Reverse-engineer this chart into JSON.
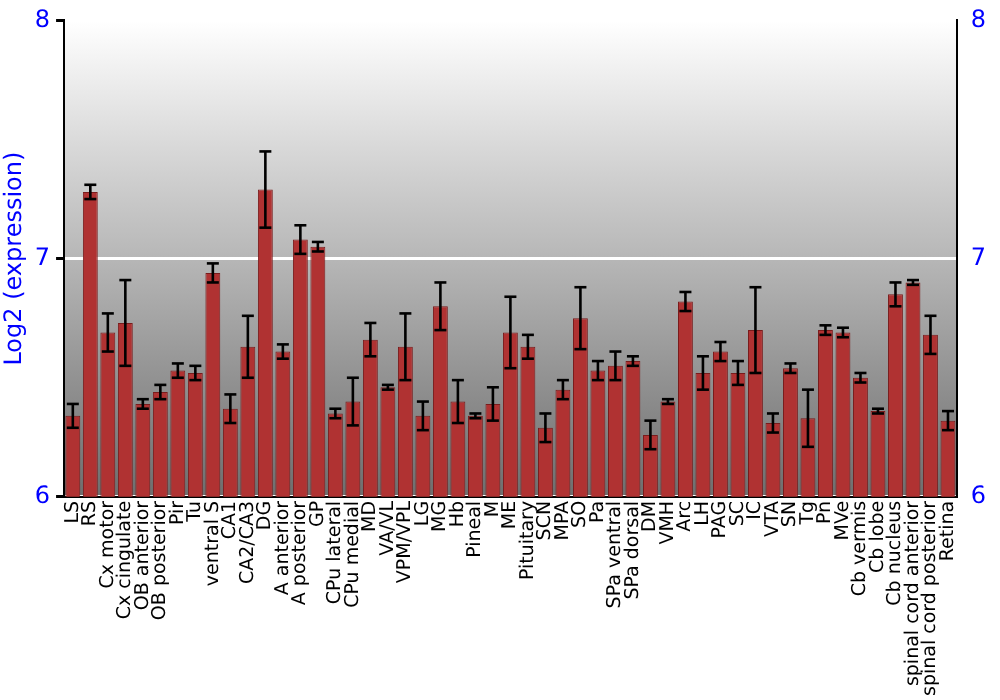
{
  "chart_data": {
    "type": "bar",
    "ylabel": "Log2 (expression)",
    "categories": [
      "LS",
      "RS",
      "Cx motor",
      "Cx cingulate",
      "OB anterior",
      "OB posterior",
      "Pir",
      "Tu",
      "ventral S",
      "CA1",
      "CA2/CA3",
      "DG",
      "A anterior",
      "A posterior",
      "GP",
      "CPu lateral",
      "CPu medial",
      "MD",
      "VA/VL",
      "VPM/VPL",
      "LG",
      "MG",
      "Hb",
      "Pineal",
      "M",
      "ME",
      "Pituitary",
      "SCN",
      "MPA",
      "SO",
      "Pa",
      "SPa ventral",
      "SPa dorsal",
      "DM",
      "VMH",
      "Arc",
      "LH",
      "PAG",
      "SC",
      "IC",
      "VTA",
      "SN",
      "Tg",
      "Pn",
      "MVe",
      "Cb vermis",
      "Cb lobe",
      "Cb nucleus",
      "spinal cord anterior",
      "spinal cord posterior",
      "Retina"
    ],
    "values": [
      6.34,
      7.28,
      6.69,
      6.73,
      6.39,
      6.44,
      6.53,
      6.52,
      6.94,
      6.37,
      6.63,
      7.29,
      6.61,
      7.08,
      7.05,
      6.35,
      6.4,
      6.66,
      6.46,
      6.63,
      6.34,
      6.8,
      6.4,
      6.34,
      6.39,
      6.69,
      6.63,
      6.29,
      6.45,
      6.75,
      6.53,
      6.55,
      6.57,
      6.26,
      6.4,
      6.82,
      6.52,
      6.61,
      6.52,
      6.7,
      6.31,
      6.54,
      6.33,
      6.7,
      6.69,
      6.5,
      6.36,
      6.85,
      6.9,
      6.68,
      6.32
    ],
    "errors": [
      0.05,
      0.03,
      0.08,
      0.18,
      0.02,
      0.03,
      0.03,
      0.03,
      0.04,
      0.06,
      0.13,
      0.16,
      0.03,
      0.06,
      0.02,
      0.02,
      0.1,
      0.07,
      0.01,
      0.14,
      0.06,
      0.1,
      0.09,
      0.01,
      0.07,
      0.15,
      0.05,
      0.06,
      0.04,
      0.13,
      0.04,
      0.06,
      0.02,
      0.06,
      0.01,
      0.04,
      0.07,
      0.04,
      0.05,
      0.18,
      0.04,
      0.02,
      0.12,
      0.02,
      0.02,
      0.02,
      0.01,
      0.05,
      0.01,
      0.08,
      0.04
    ],
    "color": "#b03232",
    "ylim": [
      6,
      8
    ],
    "yticks": [
      6,
      7,
      8
    ],
    "y2lim": [
      6,
      8
    ],
    "y2ticks": [
      6,
      7,
      8
    ],
    "grid": "y",
    "legend": false
  }
}
